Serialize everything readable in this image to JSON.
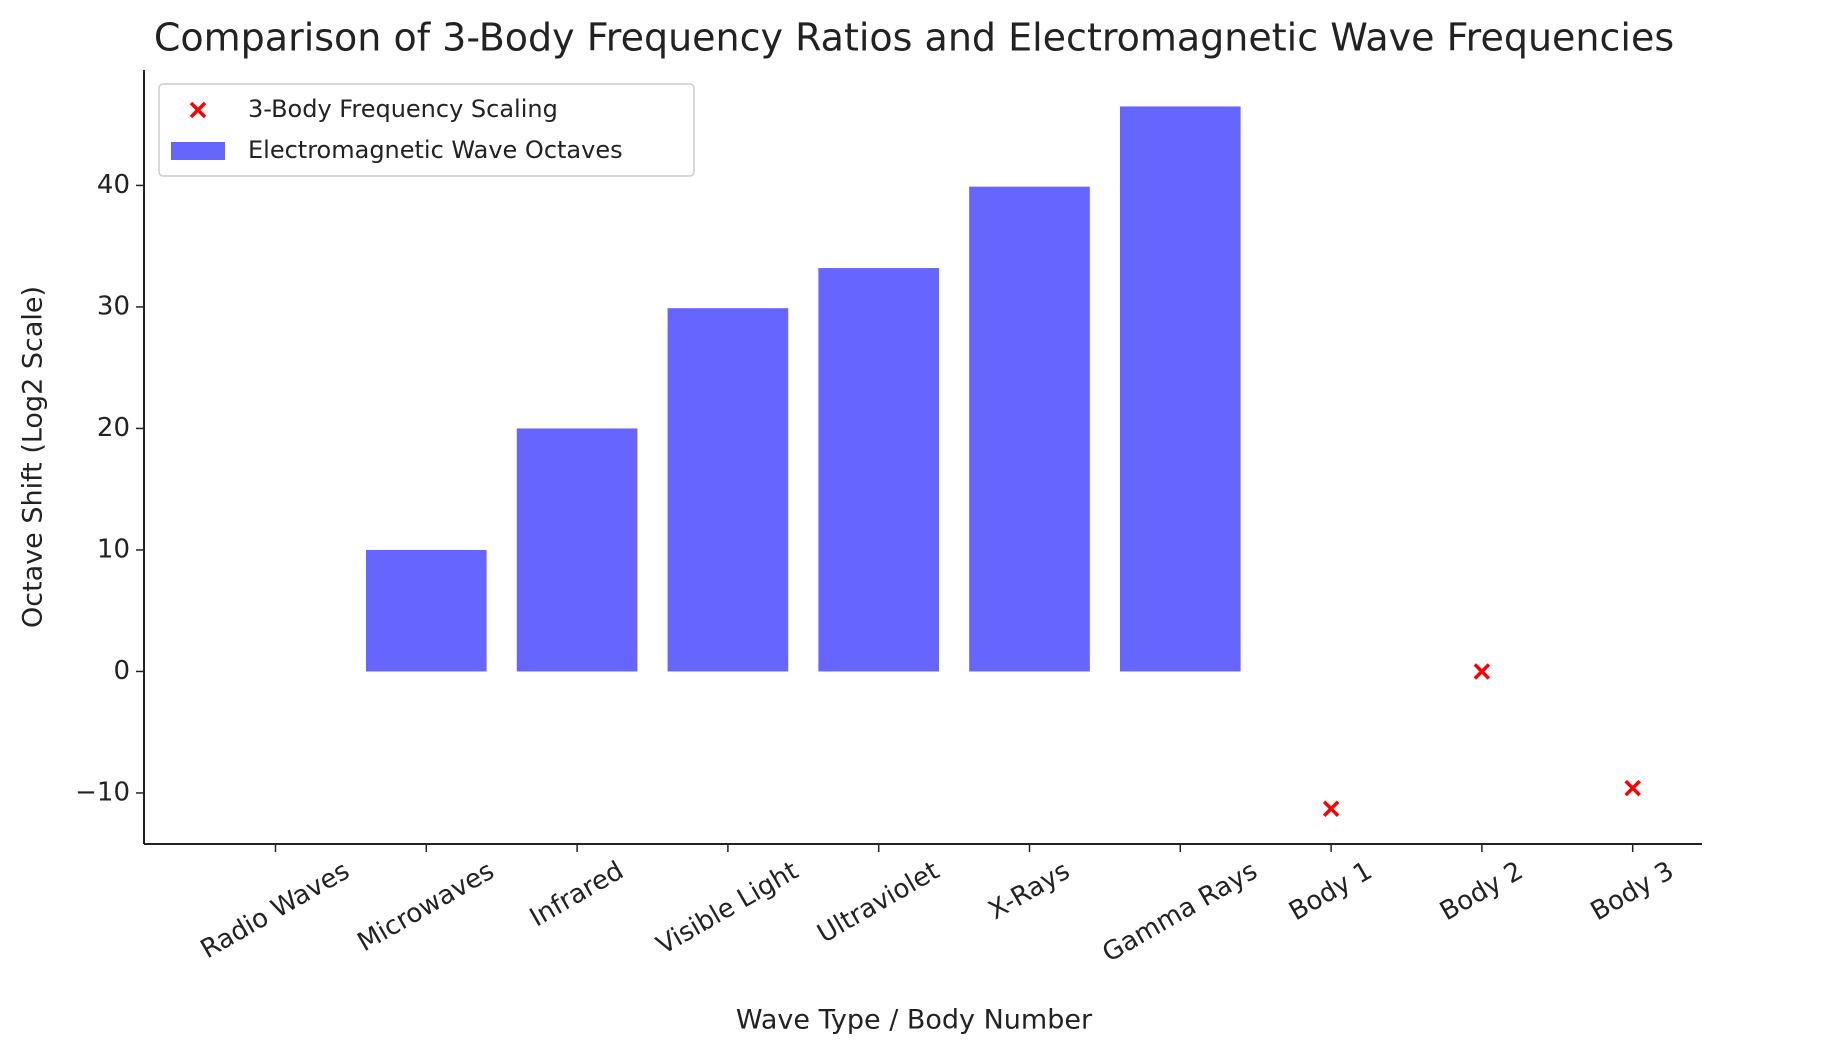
{
  "chart_data": {
    "type": "bar",
    "title": "Comparison of 3-Body Frequency Ratios and Electromagnetic Wave Frequencies",
    "x_label": "Wave Type / Body Number",
    "y_label": "Octave Shift (Log2 Scale)",
    "categories": [
      "Radio Waves",
      "Microwaves",
      "Infrared",
      "Visible Light",
      "Ultraviolet",
      "X-Rays",
      "Gamma Rays",
      "Body 1",
      "Body 2",
      "Body 3"
    ],
    "series": [
      {
        "name": "3-Body Frequency Scaling",
        "type": "scatter",
        "color": "#ff0000",
        "values": [
          null,
          null,
          null,
          null,
          null,
          null,
          null,
          -11.3,
          0,
          -9.6
        ]
      },
      {
        "name": "Electromagnetic Wave Octaves",
        "type": "bar",
        "color": "#6666ff",
        "values": [
          0,
          10,
          20,
          29.9,
          33.2,
          39.9,
          46.5,
          null,
          null,
          null
        ]
      }
    ],
    "ylim": [
      -14.2,
      49.5
    ],
    "yticks": [
      {
        "value": -10,
        "label": "−10"
      },
      0,
      10,
      20,
      30,
      40
    ],
    "legend": "upper left"
  }
}
